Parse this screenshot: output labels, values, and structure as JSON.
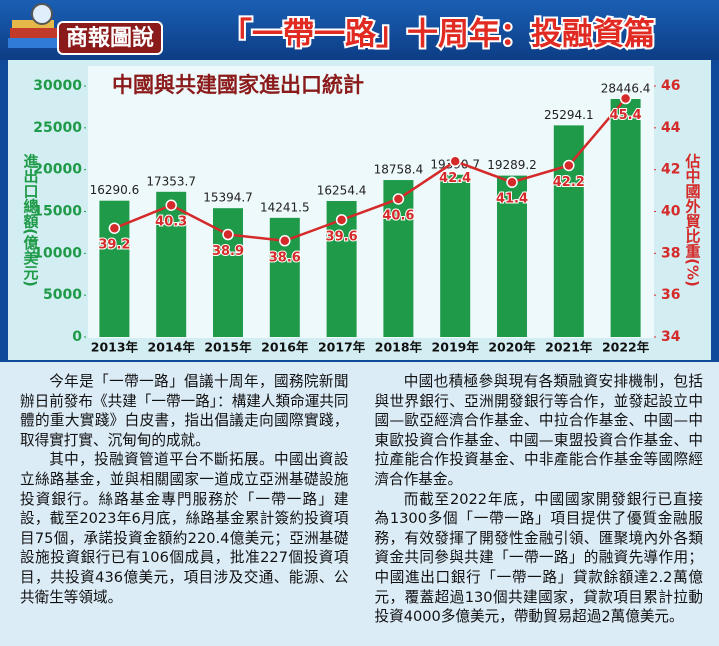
{
  "header": {
    "logo": "商報圖說",
    "title": "「一帶一路」十周年：投融資篇"
  },
  "chart_data": {
    "type": "bar",
    "title": "中國與共建國家進出口統計",
    "ylabel": "進出口總額(億美元)",
    "y2label": "佔中國外貿比重(%)",
    "categories": [
      "2013年",
      "2014年",
      "2015年",
      "2016年",
      "2017年",
      "2018年",
      "2019年",
      "2020年",
      "2021年",
      "2022年"
    ],
    "series": [
      {
        "type": "bar",
        "color": "#1e9a48",
        "values": [
          16290.6,
          17353.7,
          15394.7,
          14241.5,
          16254.4,
          18758.4,
          19390.7,
          19289.2,
          25294.1,
          28446.4
        ]
      },
      {
        "type": "line",
        "axis": "y2",
        "color": "#d42a2a",
        "values": [
          39.2,
          40.3,
          38.9,
          38.6,
          39.6,
          40.6,
          42.4,
          41.4,
          42.2,
          45.4
        ]
      }
    ],
    "ylim": [
      0,
      30000
    ],
    "yticks": [
      0,
      5000,
      10000,
      15000,
      20000,
      25000,
      30000
    ],
    "y2lim": [
      34,
      46
    ],
    "y2ticks": [
      34,
      36,
      38,
      40,
      42,
      44,
      46
    ]
  },
  "article": {
    "paragraphs": [
      "今年是「一帶一路」倡議十周年，國務院新聞辦日前發布《共建「一帶一路」：構建人類命運共同體的重大實踐》白皮書，指出倡議走向國際實踐，取得實打實、沉甸甸的成就。",
      "其中，投融資管道平台不斷拓展。中國出資設立絲路基金，並與相關國家一道成立亞洲基礎設施投資銀行。絲路基金專門服務於「一帶一路」建設，截至2023年6月底，絲路基金累計簽約投資項目75個，承諾投資金額約220.4億美元；亞洲基礎設施投資銀行已有106個成員，批准227個投資項目，共投資436億美元，項目涉及交通、能源、公共衛生等領域。",
      "中國也積極參與現有各類融資安排機制，包括與世界銀行、亞洲開發銀行等合作，並發起設立中國—歐亞經濟合作基金、中拉合作基金、中國—中東歐投資合作基金、中國—東盟投資合作基金、中拉產能合作投資基金、中非產能合作基金等國際經濟合作基金。",
      "而截至2022年底，中國國家開發銀行已直接為1300多個「一帶一路」項目提供了優質金融服務，有效發揮了開發性金融引領、匯聚境內外各類資金共同參與共建「一帶一路」的融資先導作用；中國進出口銀行「一帶一路」貸款餘額達2.2萬億元，覆蓋超過130個共建國家，貸款項目累計拉動投資4000多億美元，帶動貿易超過2萬億美元。"
    ]
  }
}
